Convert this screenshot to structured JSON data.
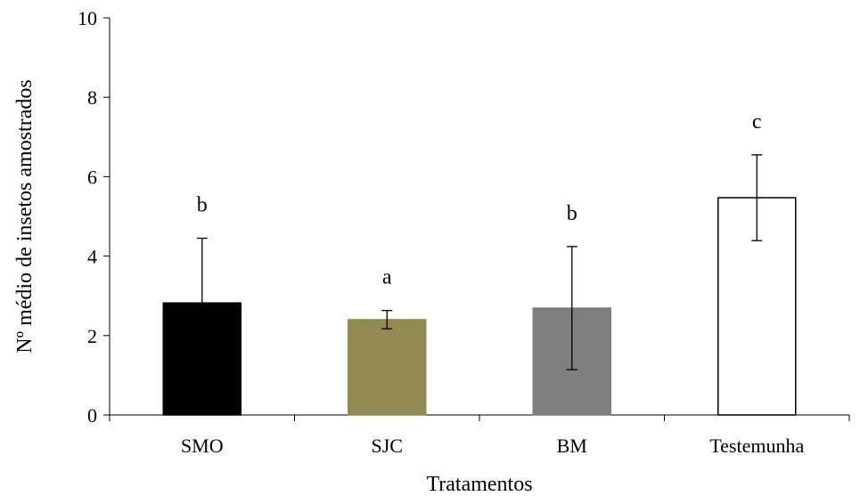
{
  "chart_data": {
    "type": "bar",
    "categories": [
      "SMO",
      "SJC",
      "BM",
      "Testemunha"
    ],
    "values": [
      2.82,
      2.4,
      2.69,
      5.47
    ],
    "errors": [
      1.63,
      0.23,
      1.55,
      1.08
    ],
    "significance_letters": [
      "b",
      "a",
      "b",
      "c"
    ],
    "bar_colors": [
      "#000000",
      "#938953",
      "#7f7f7f",
      "#ffffff"
    ],
    "bar_border_colors": [
      "#000000",
      "#938953",
      "#7f7f7f",
      "#000000"
    ],
    "xlabel": "Tratamentos",
    "ylabel": "Nº  médio de insetos amostrados",
    "ylim": [
      0,
      10
    ],
    "yticks": [
      "0",
      "2",
      "4",
      "6",
      "8",
      "10"
    ],
    "grid": false,
    "legend": "none"
  }
}
